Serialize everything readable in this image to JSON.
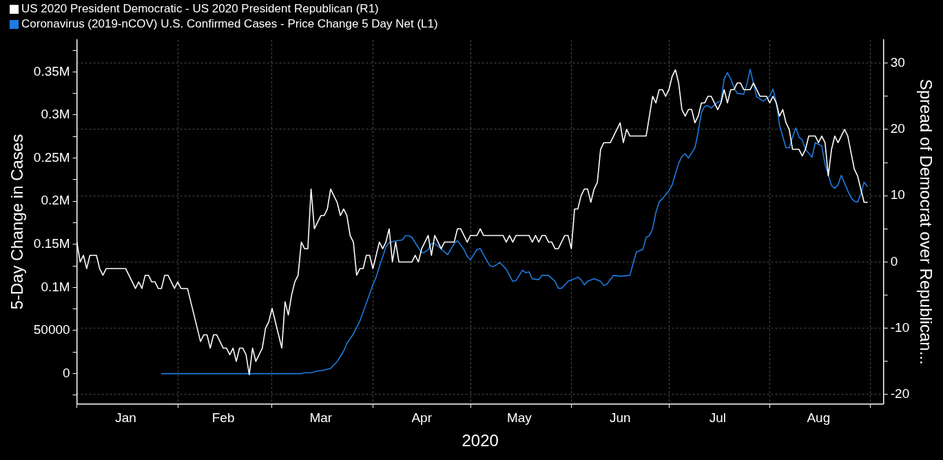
{
  "chart_data": {
    "type": "line",
    "xlabel": "2020",
    "ylabel": "5-Day Change in Cases",
    "y2label": "Spread of Democrat over Republican...",
    "xlim": [
      "2020-01-01",
      "2020-09-05"
    ],
    "xticks": [
      {
        "value": "2020-01-01",
        "label": null
      },
      {
        "value": "2020-01-16",
        "label": "Jan"
      },
      {
        "value": "2020-02-01",
        "label": null
      },
      {
        "value": "2020-02-15",
        "label": "Feb"
      },
      {
        "value": "2020-03-01",
        "label": null
      },
      {
        "value": "2020-03-16",
        "label": "Mar"
      },
      {
        "value": "2020-04-01",
        "label": null
      },
      {
        "value": "2020-04-16",
        "label": "Apr"
      },
      {
        "value": "2020-05-01",
        "label": null
      },
      {
        "value": "2020-05-16",
        "label": "May"
      },
      {
        "value": "2020-06-01",
        "label": null
      },
      {
        "value": "2020-06-16",
        "label": "Jun"
      },
      {
        "value": "2020-07-01",
        "label": null
      },
      {
        "value": "2020-07-16",
        "label": "Jul"
      },
      {
        "value": "2020-08-01",
        "label": null
      },
      {
        "value": "2020-08-16",
        "label": "Aug"
      },
      {
        "value": "2020-09-01",
        "label": null
      }
    ],
    "ylim": [
      -35000,
      387000
    ],
    "yticks": [
      {
        "value": -25000,
        "label": null
      },
      0,
      {
        "value": 25000,
        "label": null
      },
      50000,
      {
        "value": 75000,
        "label": null
      },
      {
        "value": 100000,
        "label": "0.1M"
      },
      {
        "value": 125000,
        "label": null
      },
      {
        "value": 150000,
        "label": "0.15M"
      },
      {
        "value": 175000,
        "label": null
      },
      {
        "value": 200000,
        "label": "0.2M"
      },
      {
        "value": 225000,
        "label": null
      },
      {
        "value": 250000,
        "label": "0.25M"
      },
      {
        "value": 275000,
        "label": null
      },
      {
        "value": 300000,
        "label": "0.3M"
      },
      {
        "value": 325000,
        "label": null
      },
      {
        "value": 350000,
        "label": "0.35M"
      },
      {
        "value": 375000,
        "label": null
      }
    ],
    "y2lim": [
      -21.4,
      33.5
    ],
    "y2ticks": [
      -20,
      {
        "value": -15,
        "label": null
      },
      -10,
      {
        "value": -5,
        "label": null
      },
      0,
      {
        "value": 5,
        "label": null
      },
      10,
      {
        "value": 15,
        "label": null
      },
      20,
      {
        "value": 25,
        "label": null
      },
      30
    ],
    "grid": true,
    "legend": "top left",
    "series": [
      {
        "name": "US 2020 President Democratic - US 2020 President Republican (R1)",
        "color": "#ffffff",
        "axis": "y2",
        "x": [
          "2020-01-01",
          "2020-01-02",
          "2020-01-03",
          "2020-01-04",
          "2020-01-05",
          "2020-01-07",
          "2020-01-08",
          "2020-01-09",
          "2020-01-10",
          "2020-01-16",
          "2020-01-17",
          "2020-01-19",
          "2020-01-20",
          "2020-01-21",
          "2020-01-22",
          "2020-01-23",
          "2020-01-24",
          "2020-01-25",
          "2020-01-26",
          "2020-01-27",
          "2020-01-28",
          "2020-01-29",
          "2020-01-31",
          "2020-02-01",
          "2020-02-02",
          "2020-02-04",
          "2020-02-08",
          "2020-02-09",
          "2020-02-10",
          "2020-02-11",
          "2020-02-12",
          "2020-02-13",
          "2020-02-15",
          "2020-02-16",
          "2020-02-17",
          "2020-02-18",
          "2020-02-19",
          "2020-02-20",
          "2020-02-21",
          "2020-02-22",
          "2020-02-23",
          "2020-02-24",
          "2020-02-25",
          "2020-02-27",
          "2020-02-28",
          "2020-02-29",
          "2020-03-01",
          "2020-03-04",
          "2020-03-05",
          "2020-03-06",
          "2020-03-07",
          "2020-03-08",
          "2020-03-09",
          "2020-03-10",
          "2020-03-11",
          "2020-03-12",
          "2020-03-13",
          "2020-03-14",
          "2020-03-16",
          "2020-03-17",
          "2020-03-18",
          "2020-03-19",
          "2020-03-21",
          "2020-03-22",
          "2020-03-23",
          "2020-03-24",
          "2020-03-25",
          "2020-03-26",
          "2020-03-27",
          "2020-03-28",
          "2020-03-29",
          "2020-03-30",
          "2020-03-31",
          "2020-04-01",
          "2020-04-03",
          "2020-04-04",
          "2020-04-05",
          "2020-04-06",
          "2020-04-07",
          "2020-04-08",
          "2020-04-09",
          "2020-04-13",
          "2020-04-14",
          "2020-04-15",
          "2020-04-16",
          "2020-04-18",
          "2020-04-19",
          "2020-04-20",
          "2020-04-22",
          "2020-04-23",
          "2020-04-26",
          "2020-04-27",
          "2020-04-28",
          "2020-04-30",
          "2020-05-01",
          "2020-05-03",
          "2020-05-04",
          "2020-05-05",
          "2020-05-11",
          "2020-05-12",
          "2020-05-13",
          "2020-05-14",
          "2020-05-15",
          "2020-05-19",
          "2020-05-20",
          "2020-05-21",
          "2020-05-22",
          "2020-05-23",
          "2020-05-24",
          "2020-05-25",
          "2020-05-26",
          "2020-05-27",
          "2020-05-28",
          "2020-05-30",
          "2020-05-31",
          "2020-06-01",
          "2020-06-02",
          "2020-06-03",
          "2020-06-04",
          "2020-06-05",
          "2020-06-06",
          "2020-06-07",
          "2020-06-08",
          "2020-06-09",
          "2020-06-10",
          "2020-06-11",
          "2020-06-13",
          "2020-06-14",
          "2020-06-16",
          "2020-06-17",
          "2020-06-18",
          "2020-06-19",
          "2020-06-24",
          "2020-06-26",
          "2020-06-27",
          "2020-06-28",
          "2020-06-29",
          "2020-06-30",
          "2020-07-01",
          "2020-07-02",
          "2020-07-03",
          "2020-07-04",
          "2020-07-05",
          "2020-07-06",
          "2020-07-07",
          "2020-07-08",
          "2020-07-09",
          "2020-07-10",
          "2020-07-11",
          "2020-07-12",
          "2020-07-13",
          "2020-07-14",
          "2020-07-16",
          "2020-07-17",
          "2020-07-18",
          "2020-07-19",
          "2020-07-20",
          "2020-07-21",
          "2020-07-22",
          "2020-07-23",
          "2020-07-24",
          "2020-07-26",
          "2020-07-27",
          "2020-07-29",
          "2020-07-31",
          "2020-08-01",
          "2020-08-02",
          "2020-08-03",
          "2020-08-04",
          "2020-08-05",
          "2020-08-06",
          "2020-08-07",
          "2020-08-08",
          "2020-08-10",
          "2020-08-11",
          "2020-08-12",
          "2020-08-13",
          "2020-08-15",
          "2020-08-16",
          "2020-08-17",
          "2020-08-18",
          "2020-08-19",
          "2020-08-20",
          "2020-08-21",
          "2020-08-22",
          "2020-08-24",
          "2020-08-25",
          "2020-08-27",
          "2020-08-28",
          "2020-08-29",
          "2020-08-30",
          "2020-08-31"
        ],
        "values": [
          3,
          0,
          1,
          -1,
          1,
          1,
          -1,
          -2,
          -1,
          -1,
          -2,
          -4,
          -3,
          -4,
          -2,
          -2,
          -3,
          -3,
          -4,
          -4,
          -2,
          -2,
          -4,
          -3,
          -4,
          -4,
          -12,
          -11,
          -11,
          -13,
          -11,
          -11,
          -13,
          -13,
          -14,
          -13,
          -15,
          -13,
          -13,
          -14,
          -17,
          -13,
          -15,
          -13,
          -10,
          -9,
          -7,
          -13,
          -6,
          -8,
          -5,
          -3,
          -2,
          3,
          2,
          2,
          11,
          5,
          7,
          7,
          8,
          11,
          9,
          7,
          8,
          7,
          4,
          3,
          -2,
          -1,
          -1,
          1,
          1,
          -1,
          3,
          2,
          3,
          5,
          0,
          3,
          0,
          0,
          1,
          0,
          2,
          4,
          1,
          4,
          2,
          3,
          3,
          5,
          5,
          3,
          4,
          4,
          5,
          4,
          4,
          3,
          4,
          3,
          4,
          4,
          3,
          4,
          3,
          4,
          4,
          3,
          3,
          2,
          2,
          4,
          4,
          2,
          8,
          8,
          10,
          11,
          11,
          9,
          11,
          12,
          17,
          18,
          18,
          19,
          21,
          18,
          20,
          19,
          19,
          25,
          24,
          26,
          26,
          25,
          26,
          28,
          29,
          27,
          23,
          22,
          23,
          23,
          21,
          22,
          24,
          24,
          25,
          25,
          23,
          24,
          26,
          24,
          26,
          26,
          27,
          27,
          26,
          26,
          27,
          25,
          25,
          24,
          25,
          24,
          22,
          23,
          21,
          20,
          17,
          17,
          16,
          17,
          19,
          19,
          18,
          19,
          18,
          13,
          17,
          19,
          18,
          20,
          19,
          14,
          13,
          11,
          9,
          9
        ]
      },
      {
        "name": "Coronavirus (2019-nCOV) U.S. Confirmed Cases - Price Change 5 Day Net (L1)",
        "color": "#1e7be0",
        "axis": "y",
        "x": [
          "2020-01-27",
          "2020-03-10",
          "2020-03-11",
          "2020-03-13",
          "2020-03-15",
          "2020-03-17",
          "2020-03-19",
          "2020-03-21",
          "2020-03-23",
          "2020-03-24",
          "2020-03-26",
          "2020-03-28",
          "2020-03-30",
          "2020-04-01",
          "2020-04-02",
          "2020-04-03",
          "2020-04-05",
          "2020-04-06",
          "2020-04-08",
          "2020-04-10",
          "2020-04-11",
          "2020-04-12",
          "2020-04-13",
          "2020-04-16",
          "2020-04-17",
          "2020-04-18",
          "2020-04-19",
          "2020-04-20",
          "2020-04-24",
          "2020-04-26",
          "2020-04-27",
          "2020-04-29",
          "2020-04-30",
          "2020-05-01",
          "2020-05-03",
          "2020-05-04",
          "2020-05-05",
          "2020-05-07",
          "2020-05-08",
          "2020-05-10",
          "2020-05-12",
          "2020-05-14",
          "2020-05-15",
          "2020-05-17",
          "2020-05-18",
          "2020-05-19",
          "2020-05-20",
          "2020-05-22",
          "2020-05-23",
          "2020-05-25",
          "2020-05-27",
          "2020-05-28",
          "2020-05-29",
          "2020-05-31",
          "2020-06-02",
          "2020-06-03",
          "2020-06-04",
          "2020-06-05",
          "2020-06-06",
          "2020-06-08",
          "2020-06-10",
          "2020-06-11",
          "2020-06-12",
          "2020-06-14",
          "2020-06-16",
          "2020-06-19",
          "2020-06-21",
          "2020-06-23",
          "2020-06-24",
          "2020-06-25",
          "2020-06-26",
          "2020-06-27",
          "2020-06-28",
          "2020-06-29",
          "2020-07-01",
          "2020-07-02",
          "2020-07-04",
          "2020-07-05",
          "2020-07-06",
          "2020-07-07",
          "2020-07-09",
          "2020-07-10",
          "2020-07-11",
          "2020-07-12",
          "2020-07-13",
          "2020-07-14",
          "2020-07-16",
          "2020-07-17",
          "2020-07-18",
          "2020-07-19",
          "2020-07-20",
          "2020-07-21",
          "2020-07-22",
          "2020-07-24",
          "2020-07-25",
          "2020-07-26",
          "2020-07-27",
          "2020-07-28",
          "2020-07-30",
          "2020-08-01",
          "2020-08-02",
          "2020-08-03",
          "2020-08-04",
          "2020-08-06",
          "2020-08-07",
          "2020-08-08",
          "2020-08-09",
          "2020-08-10",
          "2020-08-11",
          "2020-08-12",
          "2020-08-14",
          "2020-08-15",
          "2020-08-17",
          "2020-08-18",
          "2020-08-20",
          "2020-08-21",
          "2020-08-22",
          "2020-08-23",
          "2020-08-25",
          "2020-08-26",
          "2020-08-27",
          "2020-08-28",
          "2020-08-29",
          "2020-08-30",
          "2020-08-31"
        ],
        "values": [
          0,
          0,
          1000,
          1000,
          3000,
          4000,
          6000,
          14000,
          26000,
          35000,
          46000,
          61000,
          82000,
          103000,
          112000,
          124000,
          147000,
          152000,
          154000,
          155000,
          160000,
          160000,
          158000,
          140000,
          141000,
          144000,
          151000,
          151000,
          138000,
          151000,
          154000,
          144000,
          136000,
          132000,
          144000,
          145000,
          138000,
          125000,
          124000,
          129000,
          121000,
          107000,
          108000,
          120000,
          117000,
          118000,
          110000,
          109000,
          114000,
          114000,
          107000,
          99000,
          99000,
          107000,
          110000,
          112000,
          109000,
          103000,
          107000,
          110000,
          107000,
          102000,
          104000,
          114000,
          113000,
          114000,
          141000,
          144000,
          158000,
          160000,
          168000,
          187000,
          199000,
          203000,
          212000,
          219000,
          244000,
          252000,
          255000,
          250000,
          262000,
          280000,
          303000,
          310000,
          311000,
          308000,
          315000,
          316000,
          342000,
          349000,
          342000,
          332000,
          325000,
          324000,
          336000,
          353000,
          336000,
          321000,
          316000,
          322000,
          330000,
          315000,
          288000,
          262000,
          262000,
          274000,
          285000,
          274000,
          271000,
          260000,
          251000,
          268000,
          264000,
          243000,
          218000,
          215000,
          219000,
          230000,
          212000,
          204000,
          200000,
          199000,
          208000,
          222000,
          217000
        ]
      }
    ]
  }
}
